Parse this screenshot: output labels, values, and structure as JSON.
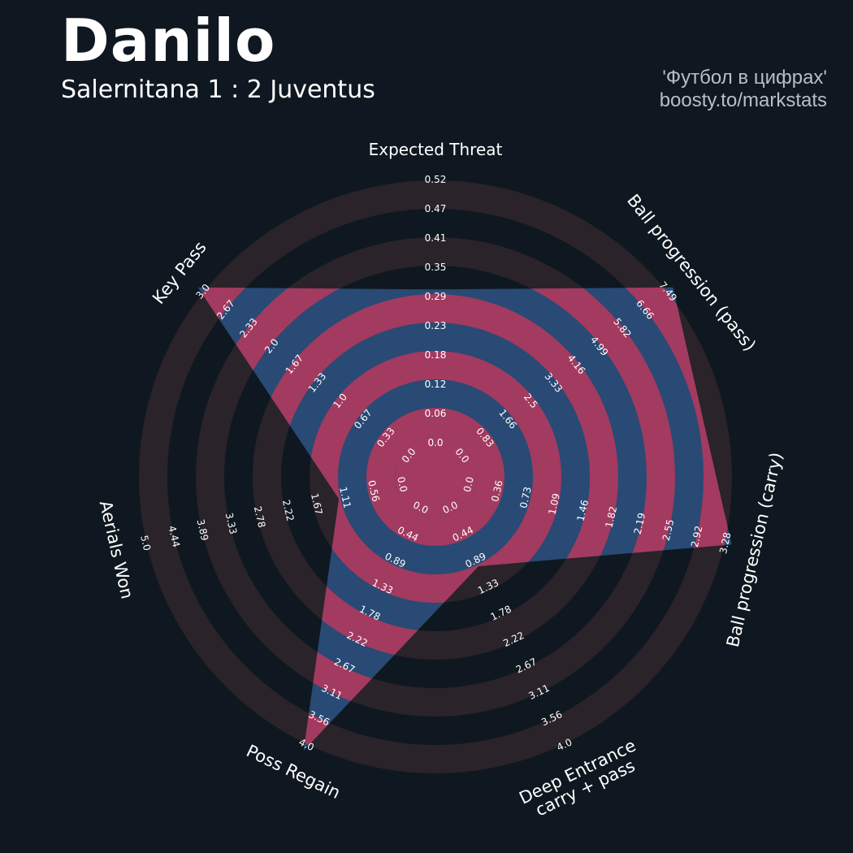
{
  "header": {
    "title": "Danilo",
    "subtitle": "Salernitana 1 : 2 Juventus",
    "credit_line1": "'Футбол в цифрах'",
    "credit_line2": "boosty.to/markstats"
  },
  "colors": {
    "background": "#0f1820",
    "ring_faint": "#2a2329",
    "ring_pink": "#a33a5f",
    "polygon": "#284a75"
  },
  "chart_data": {
    "type": "radar",
    "axes": [
      {
        "name": "Expected Threat",
        "min": 0.0,
        "max": 0.52,
        "ticks": [
          "0.0",
          "0.06",
          "0.12",
          "0.18",
          "0.23",
          "0.29",
          "0.35",
          "0.41",
          "0.47",
          "0.52"
        ],
        "value": 0.29
      },
      {
        "name": "Ball progression (pass)",
        "min": 0.0,
        "max": 7.49,
        "ticks": [
          "0.0",
          "0.83",
          "1.66",
          "2.5",
          "3.33",
          "4.16",
          "4.99",
          "5.82",
          "6.66",
          "7.49"
        ],
        "value": 7.49
      },
      {
        "name": "Ball progression (carry)",
        "min": 0.0,
        "max": 3.28,
        "ticks": [
          "0.0",
          "0.36",
          "0.73",
          "1.09",
          "1.46",
          "1.82",
          "2.19",
          "2.55",
          "2.92",
          "3.28"
        ],
        "value": 3.28
      },
      {
        "name": "Deep Entrance carry + pass",
        "min": 0.0,
        "max": 4.0,
        "ticks": [
          "0.0",
          "0.44",
          "0.89",
          "1.33",
          "1.78",
          "2.22",
          "2.67",
          "3.11",
          "3.56",
          "4.0"
        ],
        "value": 0.89
      },
      {
        "name": "Poss Regain",
        "min": 0.0,
        "max": 4.0,
        "ticks": [
          "0.0",
          "0.44",
          "0.89",
          "1.33",
          "1.78",
          "2.22",
          "2.67",
          "3.11",
          "3.56",
          "4.0"
        ],
        "value": 4.0
      },
      {
        "name": "Aerials Won",
        "min": 0.0,
        "max": 5.0,
        "ticks": [
          "0.0",
          "0.56",
          "1.11",
          "1.67",
          "2.22",
          "2.78",
          "3.33",
          "3.89",
          "4.44",
          "5.0"
        ],
        "value": 1.11
      },
      {
        "name": "Key Pass",
        "min": 0.0,
        "max": 3.0,
        "ticks": [
          "0.0",
          "0.33",
          "0.67",
          "1.0",
          "1.33",
          "1.67",
          "2.0",
          "2.33",
          "2.67",
          "3.0"
        ],
        "value": 3.0
      }
    ],
    "axis_label_lines": [
      [
        "Expected Threat"
      ],
      [
        "Ball progression (pass)"
      ],
      [
        "Ball progression (carry)"
      ],
      [
        "Deep Entrance",
        "carry + pass"
      ],
      [
        "Poss Regain"
      ],
      [
        "Aerials Won"
      ],
      [
        "Key Pass"
      ]
    ]
  }
}
